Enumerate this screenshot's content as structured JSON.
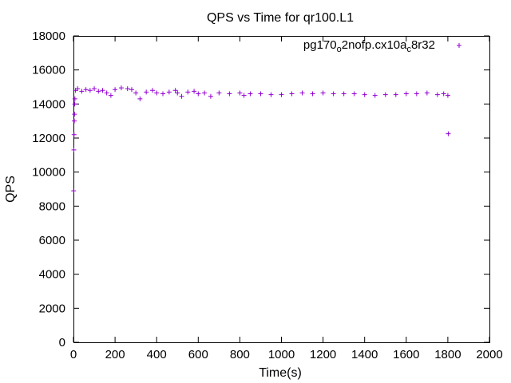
{
  "chart_data": {
    "type": "scatter",
    "title": "QPS vs Time for qr100.L1",
    "xlabel": "Time(s)",
    "ylabel": "QPS",
    "xlim": [
      0,
      2000
    ],
    "ylim": [
      0,
      18000
    ],
    "x_ticks": [
      0,
      200,
      400,
      600,
      800,
      1000,
      1200,
      1400,
      1600,
      1800,
      2000
    ],
    "y_ticks": [
      0,
      2000,
      4000,
      6000,
      8000,
      10000,
      12000,
      14000,
      16000,
      18000
    ],
    "x_tick_labels": [
      "0",
      "200",
      "400",
      "600",
      "800",
      "1000",
      "1200",
      "1400",
      "1600",
      "1800",
      "2000"
    ],
    "y_tick_labels": [
      "0",
      "2000",
      "4000",
      "6000",
      "8000",
      "10000",
      "12000",
      "14000",
      "16000",
      "18000"
    ],
    "grid": false,
    "legend_position": "top-right",
    "marker": "plus",
    "series": [
      {
        "name": "pg170_o2nofp.cx10a_c8r32",
        "legend": {
          "base": "pg170",
          "sub1": "o",
          "mid": "2nofp.cx10a",
          "sub2": "c",
          "end": "8r32"
        },
        "color": "#9400d3",
        "points": [
          [
            1,
            8900
          ],
          [
            2,
            11300
          ],
          [
            3,
            12200
          ],
          [
            4,
            13000
          ],
          [
            5,
            13400
          ],
          [
            6,
            14000
          ],
          [
            7,
            14300
          ],
          [
            10,
            14800
          ],
          [
            20,
            14900
          ],
          [
            40,
            14750
          ],
          [
            60,
            14850
          ],
          [
            80,
            14800
          ],
          [
            100,
            14900
          ],
          [
            120,
            14750
          ],
          [
            140,
            14800
          ],
          [
            160,
            14650
          ],
          [
            180,
            14500
          ],
          [
            200,
            14850
          ],
          [
            230,
            14950
          ],
          [
            260,
            14900
          ],
          [
            280,
            14850
          ],
          [
            300,
            14650
          ],
          [
            320,
            14300
          ],
          [
            350,
            14700
          ],
          [
            380,
            14800
          ],
          [
            400,
            14650
          ],
          [
            430,
            14600
          ],
          [
            460,
            14700
          ],
          [
            490,
            14800
          ],
          [
            500,
            14650
          ],
          [
            520,
            14450
          ],
          [
            550,
            14700
          ],
          [
            580,
            14750
          ],
          [
            600,
            14600
          ],
          [
            630,
            14650
          ],
          [
            660,
            14450
          ],
          [
            700,
            14650
          ],
          [
            750,
            14600
          ],
          [
            800,
            14650
          ],
          [
            820,
            14500
          ],
          [
            850,
            14600
          ],
          [
            900,
            14600
          ],
          [
            950,
            14550
          ],
          [
            1000,
            14550
          ],
          [
            1050,
            14600
          ],
          [
            1100,
            14650
          ],
          [
            1150,
            14600
          ],
          [
            1200,
            14650
          ],
          [
            1250,
            14600
          ],
          [
            1300,
            14600
          ],
          [
            1350,
            14600
          ],
          [
            1400,
            14550
          ],
          [
            1450,
            14500
          ],
          [
            1500,
            14550
          ],
          [
            1550,
            14550
          ],
          [
            1600,
            14600
          ],
          [
            1650,
            14600
          ],
          [
            1700,
            14650
          ],
          [
            1750,
            14550
          ],
          [
            1780,
            14600
          ],
          [
            1800,
            14500
          ],
          [
            1802,
            12250
          ]
        ]
      }
    ]
  }
}
